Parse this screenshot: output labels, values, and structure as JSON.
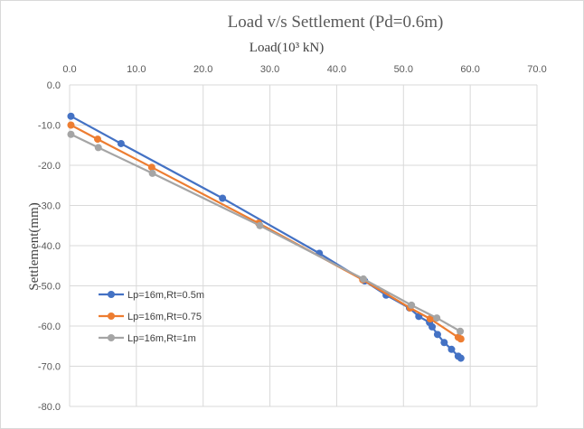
{
  "chart_data": {
    "type": "line",
    "title": "Load v/s Settlement (Pd=0.6m)",
    "xlabel": "Load(10³ kN)",
    "ylabel": "Settlement(mm)",
    "xlim": [
      0,
      70
    ],
    "ylim": [
      -80,
      0
    ],
    "xticks": [
      "0.0",
      "10.0",
      "20.0",
      "30.0",
      "40.0",
      "50.0",
      "60.0",
      "70.0"
    ],
    "yticks": [
      "0.0",
      "-10.0",
      "-20.0",
      "-30.0",
      "-40.0",
      "-50.0",
      "-60.0",
      "-70.0",
      "-80.0"
    ],
    "grid": true,
    "legend_position": "bottom-left",
    "series": [
      {
        "name": "Lp=16m,Rt=0.5m",
        "color": "#4472c4",
        "x": [
          0.2,
          7.7,
          22.9,
          37.4,
          44.2,
          47.4,
          50.9,
          52.3,
          53.9,
          54.3,
          55.1,
          56.1,
          57.2,
          58.2,
          58.6
        ],
        "y": [
          -7.8,
          -14.6,
          -28.2,
          -41.9,
          -48.8,
          -52.3,
          -55.5,
          -57.6,
          -59.1,
          -60.2,
          -62.1,
          -64.1,
          -65.8,
          -67.5,
          -68.0
        ]
      },
      {
        "name": "Lp=16m,Rt=0.75",
        "color": "#ed7d31",
        "x": [
          0.2,
          4.2,
          12.3,
          28.3,
          43.9,
          51.0,
          54.0,
          58.2,
          58.6
        ],
        "y": [
          -10.0,
          -13.5,
          -20.5,
          -34.4,
          -48.5,
          -55.5,
          -58.2,
          -62.8,
          -63.2
        ]
      },
      {
        "name": "Lp=16m,Rt=1m",
        "color": "#a5a5a5",
        "x": [
          0.2,
          4.3,
          12.4,
          28.5,
          44.0,
          51.2,
          55.0,
          58.5
        ],
        "y": [
          -12.3,
          -15.6,
          -22.0,
          -35.0,
          -48.3,
          -54.8,
          -58.0,
          -61.3
        ]
      }
    ]
  }
}
